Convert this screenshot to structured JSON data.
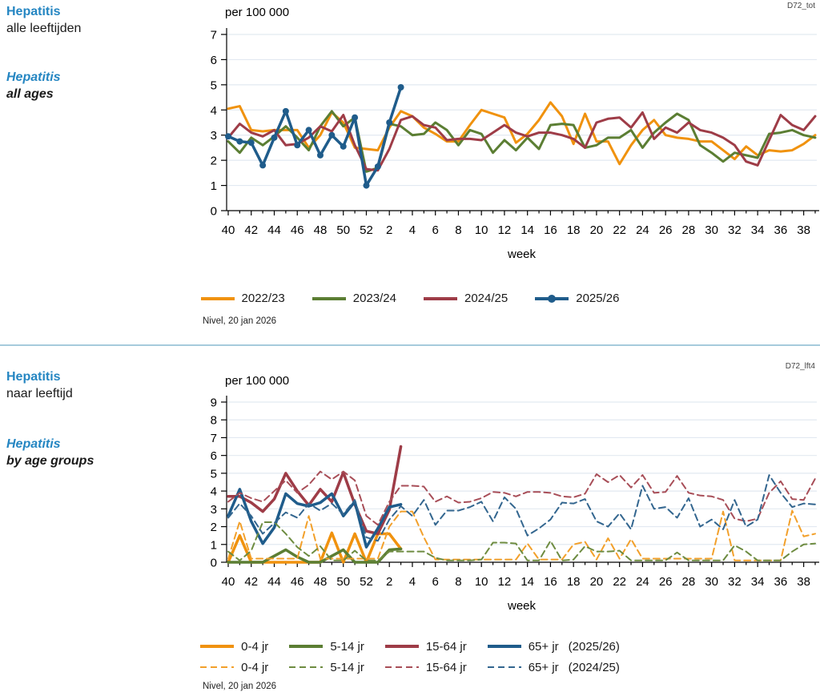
{
  "page": {
    "background": "#ffffff",
    "divider_color": "#A6CBDC"
  },
  "colors": {
    "accent_blue_text": "#2586C2",
    "gridline": "#E2E9F1",
    "axis": "#000000",
    "season_2022_23": "#F0920E",
    "season_2023_24": "#5B7E33",
    "season_2024_25": "#9E3C47",
    "season_2025_26": "#1F5C8B",
    "dashed_0_4": "#F2A02B",
    "dashed_5_14": "#6E8C41",
    "dashed_15_64": "#A84E58",
    "dashed_65plus": "#33668F"
  },
  "panel1": {
    "code": "D72_tot",
    "title_nl_line1": "Hepatitis",
    "title_nl_line2": "alle leeftijden",
    "title_en_line1": "Hepatitis",
    "title_en_line2": "all ages",
    "source": "Nivel, 20 jan 2026"
  },
  "panel2": {
    "code": "D72_lft4",
    "title_nl_line1": "Hepatitis",
    "title_nl_line2": "naar leeftijd",
    "title_en_line1": "Hepatitis",
    "title_en_line2": "by age groups",
    "source": "Nivel, 20 jan 2026"
  },
  "chart_data": [
    {
      "type": "line",
      "title": "Hepatitis alle leeftijden / all ages",
      "unit_label": "per 100 000",
      "xlabel": "week",
      "ylim": [
        0,
        7
      ],
      "grid": true,
      "legend_position": "bottom",
      "x_categories": [
        40,
        41,
        42,
        43,
        44,
        45,
        46,
        47,
        48,
        49,
        50,
        51,
        52,
        1,
        2,
        3,
        4,
        5,
        6,
        7,
        8,
        9,
        10,
        11,
        12,
        13,
        14,
        15,
        16,
        17,
        18,
        19,
        20,
        21,
        22,
        23,
        24,
        25,
        26,
        27,
        28,
        29,
        30,
        31,
        32,
        33,
        34,
        35,
        36,
        37,
        38,
        39
      ],
      "x_labeled_ticks": [
        40,
        42,
        44,
        46,
        48,
        50,
        52,
        2,
        4,
        6,
        8,
        10,
        12,
        14,
        16,
        18,
        20,
        22,
        24,
        26,
        28,
        30,
        32,
        34,
        36,
        38
      ],
      "series": [
        {
          "name": "2022/23",
          "color": "#F0920E",
          "style": "solid",
          "width": 3,
          "markers": false,
          "values": [
            4.05,
            4.15,
            3.2,
            3.15,
            3.2,
            3.2,
            3.2,
            2.5,
            3.0,
            3.9,
            3.5,
            2.5,
            2.45,
            2.4,
            3.3,
            3.95,
            3.75,
            3.3,
            3.05,
            2.75,
            2.75,
            3.4,
            4.0,
            3.85,
            3.7,
            2.7,
            3.05,
            3.6,
            4.3,
            3.75,
            2.65,
            3.85,
            2.75,
            2.75,
            1.85,
            2.6,
            3.2,
            3.6,
            3.0,
            2.9,
            2.85,
            2.75,
            2.75,
            2.4,
            2.05,
            2.55,
            2.2,
            2.4,
            2.35,
            2.4,
            2.65,
            3.0
          ]
        },
        {
          "name": "2023/24",
          "color": "#5B7E33",
          "style": "solid",
          "width": 3,
          "markers": false,
          "values": [
            2.75,
            2.3,
            2.9,
            2.6,
            2.95,
            3.35,
            2.9,
            2.4,
            3.35,
            3.95,
            3.35,
            3.7,
            1.55,
            1.7,
            3.45,
            3.35,
            3.0,
            3.05,
            3.5,
            3.2,
            2.6,
            3.2,
            3.05,
            2.3,
            2.8,
            2.4,
            2.9,
            2.45,
            3.4,
            3.45,
            3.4,
            2.5,
            2.6,
            2.9,
            2.9,
            3.2,
            2.5,
            3.1,
            3.5,
            3.85,
            3.6,
            2.6,
            2.3,
            1.95,
            2.3,
            2.2,
            2.1,
            3.05,
            3.1,
            3.2,
            3.0,
            2.9
          ]
        },
        {
          "name": "2024/25",
          "color": "#9E3C47",
          "style": "solid",
          "width": 3,
          "markers": false,
          "values": [
            2.9,
            3.45,
            3.1,
            2.95,
            3.2,
            2.6,
            2.65,
            2.9,
            3.35,
            3.15,
            3.8,
            2.6,
            1.65,
            1.6,
            2.45,
            3.6,
            3.75,
            3.4,
            3.3,
            2.8,
            2.85,
            2.85,
            2.8,
            3.1,
            3.4,
            3.1,
            2.95,
            3.1,
            3.1,
            3.0,
            2.85,
            2.5,
            3.5,
            3.65,
            3.7,
            3.3,
            3.9,
            2.85,
            3.3,
            3.1,
            3.5,
            3.2,
            3.1,
            2.9,
            2.6,
            1.95,
            1.8,
            2.8,
            3.8,
            3.4,
            3.2,
            3.75
          ]
        },
        {
          "name": "2025/26",
          "color": "#1F5C8B",
          "style": "solid",
          "width": 3.5,
          "markers": true,
          "values": [
            2.95,
            2.75,
            2.7,
            1.8,
            2.9,
            3.95,
            2.6,
            3.2,
            2.2,
            3.0,
            2.55,
            3.7,
            1.0,
            1.75,
            3.5,
            4.9
          ]
        }
      ],
      "legend": {
        "items": [
          {
            "label": "2022/23",
            "color": "#F0920E",
            "style": "solid",
            "marker": false
          },
          {
            "label": "2023/24",
            "color": "#5B7E33",
            "style": "solid",
            "marker": false
          },
          {
            "label": "2024/25",
            "color": "#9E3C47",
            "style": "solid",
            "marker": false
          },
          {
            "label": "2025/26",
            "color": "#1F5C8B",
            "style": "solid",
            "marker": true
          }
        ]
      }
    },
    {
      "type": "line",
      "title": "Hepatitis naar leeftijd / by age groups",
      "unit_label": "per 100 000",
      "xlabel": "week",
      "ylim": [
        0,
        9
      ],
      "grid": true,
      "legend_position": "bottom",
      "x_categories": [
        40,
        41,
        42,
        43,
        44,
        45,
        46,
        47,
        48,
        49,
        50,
        51,
        52,
        1,
        2,
        3,
        4,
        5,
        6,
        7,
        8,
        9,
        10,
        11,
        12,
        13,
        14,
        15,
        16,
        17,
        18,
        19,
        20,
        21,
        22,
        23,
        24,
        25,
        26,
        27,
        28,
        29,
        30,
        31,
        32,
        33,
        34,
        35,
        36,
        37,
        38,
        39
      ],
      "x_labeled_ticks": [
        40,
        42,
        44,
        46,
        48,
        50,
        52,
        2,
        4,
        6,
        8,
        10,
        12,
        14,
        16,
        18,
        20,
        22,
        24,
        26,
        28,
        30,
        32,
        34,
        36,
        38
      ],
      "series": [
        {
          "name": "0-4 jr (2025/26)",
          "color": "#F0920E",
          "style": "solid",
          "width": 3.5,
          "markers": false,
          "values": [
            0,
            1.5,
            0,
            0,
            0,
            0,
            0,
            0,
            0,
            1.65,
            0,
            1.6,
            0,
            1.6,
            1.6,
            0.75
          ]
        },
        {
          "name": "5-14 jr (2025/26)",
          "color": "#5B7E33",
          "style": "solid",
          "width": 3.5,
          "markers": false,
          "values": [
            0,
            0,
            0,
            0,
            0.35,
            0.7,
            0.3,
            0,
            0,
            0.35,
            0.7,
            0,
            0,
            0,
            0.7,
            0.75
          ]
        },
        {
          "name": "15-64 jr (2025/26)",
          "color": "#9E3C47",
          "style": "solid",
          "width": 3.5,
          "markers": false,
          "values": [
            3.7,
            3.7,
            3.35,
            2.85,
            3.55,
            5.0,
            4.0,
            3.2,
            4.1,
            3.4,
            5.05,
            3.25,
            1.75,
            1.6,
            2.95,
            6.5
          ]
        },
        {
          "name": "65+ jr (2025/26)",
          "color": "#1F5C8B",
          "style": "solid",
          "width": 3.5,
          "markers": false,
          "values": [
            2.6,
            4.1,
            2.3,
            1.05,
            1.95,
            3.85,
            3.3,
            3.15,
            3.35,
            3.85,
            2.6,
            3.4,
            0.85,
            1.9,
            3.1,
            3.25
          ]
        },
        {
          "name": "0-4 jr (2024/25)",
          "color": "#F2A02B",
          "style": "dashed",
          "width": 2,
          "markers": false,
          "values": [
            0.2,
            2.3,
            0.2,
            0.2,
            0.2,
            0.2,
            0.2,
            2.6,
            0.2,
            0.2,
            0.2,
            0.2,
            0.2,
            0.2,
            2.0,
            2.85,
            2.85,
            1.4,
            0.15,
            0.15,
            0.15,
            0.15,
            0.15,
            0.15,
            0.15,
            0.15,
            1.05,
            0.15,
            0.15,
            0.15,
            1.0,
            1.15,
            0.15,
            1.35,
            0.2,
            1.3,
            0.2,
            0.2,
            0.2,
            0.2,
            0.2,
            0.2,
            0.2,
            2.85,
            0.1,
            0.1,
            0.1,
            0.1,
            0.1,
            2.9,
            1.45,
            1.6
          ]
        },
        {
          "name": "5-14 jr (2024/25)",
          "color": "#6E8C41",
          "style": "dashed",
          "width": 2,
          "markers": false,
          "values": [
            0.6,
            0.1,
            0.65,
            2.25,
            2.25,
            1.6,
            0.85,
            0.35,
            0.9,
            0.1,
            0.1,
            0.65,
            0.1,
            0.1,
            0.6,
            0.6,
            0.6,
            0.6,
            0.25,
            0.1,
            0.1,
            0.1,
            0.15,
            1.1,
            1.1,
            1.05,
            0.1,
            0.1,
            1.2,
            0.1,
            0.15,
            0.9,
            0.6,
            0.6,
            0.65,
            0.1,
            0.1,
            0.1,
            0.1,
            0.55,
            0.1,
            0.1,
            0.1,
            0.1,
            0.95,
            0.6,
            0.1,
            0.1,
            0.1,
            0.6,
            1.0,
            1.05
          ]
        },
        {
          "name": "15-64 jr (2024/25)",
          "color": "#A84E58",
          "style": "dashed",
          "width": 2,
          "markers": false,
          "values": [
            3.4,
            3.9,
            3.6,
            3.4,
            4.0,
            4.6,
            3.9,
            4.35,
            5.1,
            4.65,
            5.1,
            4.6,
            2.6,
            2.1,
            3.4,
            4.3,
            4.3,
            4.25,
            3.4,
            3.7,
            3.35,
            3.4,
            3.6,
            3.95,
            3.9,
            3.7,
            3.95,
            3.95,
            3.9,
            3.7,
            3.65,
            3.85,
            4.95,
            4.5,
            4.9,
            4.2,
            4.9,
            3.9,
            3.95,
            4.85,
            3.9,
            3.75,
            3.7,
            3.5,
            2.45,
            2.3,
            2.45,
            3.9,
            4.55,
            3.55,
            3.5,
            4.7
          ]
        },
        {
          "name": "65+ jr (2024/25)",
          "color": "#33668F",
          "style": "dashed",
          "width": 2,
          "markers": false,
          "values": [
            2.5,
            3.3,
            2.6,
            1.6,
            2.2,
            2.8,
            2.5,
            3.3,
            2.9,
            3.3,
            2.7,
            3.5,
            1.4,
            1.2,
            2.4,
            3.15,
            2.6,
            3.5,
            2.1,
            2.9,
            2.9,
            3.1,
            3.4,
            2.3,
            3.65,
            3.0,
            1.5,
            1.9,
            2.4,
            3.35,
            3.3,
            3.55,
            2.3,
            2.0,
            2.75,
            1.85,
            4.3,
            3.0,
            3.1,
            2.5,
            3.6,
            2.0,
            2.4,
            1.85,
            3.5,
            2.0,
            2.4,
            4.9,
            3.9,
            3.1,
            3.3,
            3.25
          ]
        }
      ],
      "legend": {
        "rows": [
          {
            "style": "solid",
            "season": "(2025/26)",
            "items": [
              {
                "label": "0-4 jr",
                "color": "#F0920E"
              },
              {
                "label": "5-14 jr",
                "color": "#5B7E33"
              },
              {
                "label": "15-64 jr",
                "color": "#9E3C47"
              },
              {
                "label": "65+ jr",
                "color": "#1F5C8B"
              }
            ]
          },
          {
            "style": "dashed",
            "season": "(2024/25)",
            "items": [
              {
                "label": "0-4 jr",
                "color": "#F2A02B"
              },
              {
                "label": "5-14 jr",
                "color": "#6E8C41"
              },
              {
                "label": "15-64 jr",
                "color": "#A84E58"
              },
              {
                "label": "65+ jr",
                "color": "#33668F"
              }
            ]
          }
        ]
      }
    }
  ]
}
